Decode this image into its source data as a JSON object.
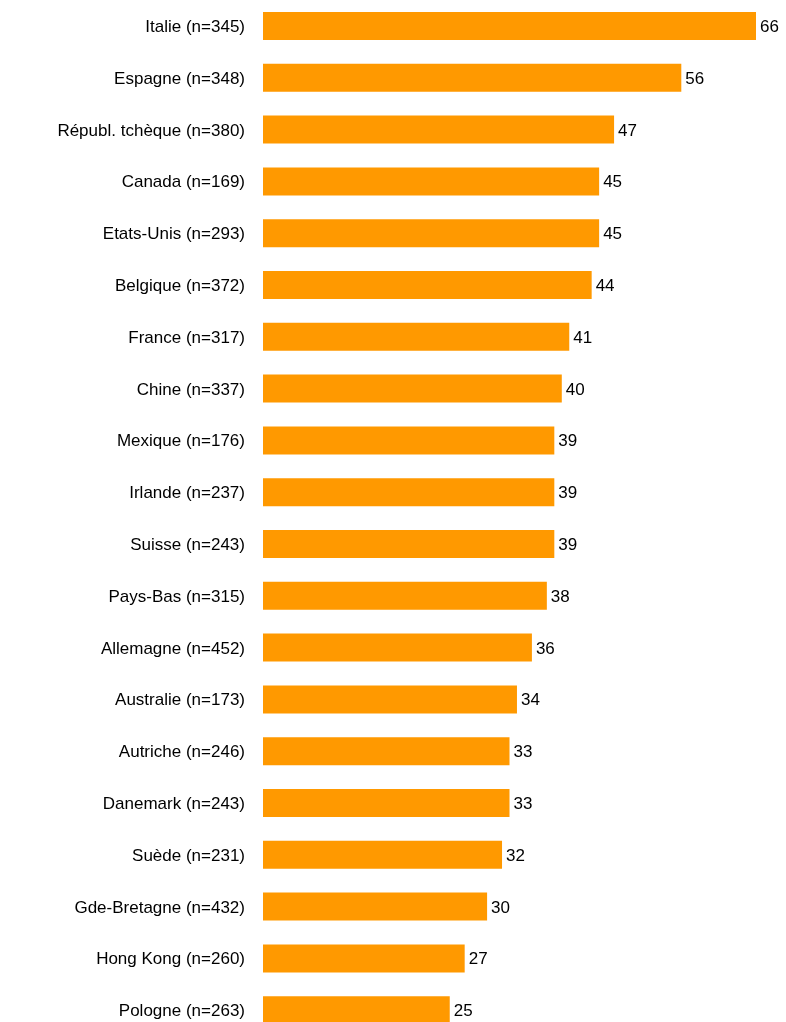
{
  "chart_data": {
    "type": "bar",
    "orientation": "horizontal",
    "categories": [
      "Italie (n=345)",
      "Espagne (n=348)",
      "Républ. tchèque (n=380)",
      "Canada (n=169)",
      "Etats-Unis (n=293)",
      "Belgique (n=372)",
      "France (n=317)",
      "Chine (n=337)",
      "Mexique (n=176)",
      "Irlande (n=237)",
      "Suisse (n=243)",
      "Pays-Bas (n=315)",
      "Allemagne (n=452)",
      "Australie (n=173)",
      "Autriche (n=246)",
      "Danemark (n=243)",
      "Suède (n=231)",
      "Gde-Bretagne (n=432)",
      "Hong Kong (n=260)",
      "Pologne (n=263)"
    ],
    "values": [
      66,
      56,
      47,
      45,
      45,
      44,
      41,
      40,
      39,
      39,
      39,
      38,
      36,
      34,
      33,
      33,
      32,
      30,
      27,
      25
    ],
    "color": "#ff9900",
    "data_labels": true,
    "grid": false,
    "legend": false,
    "tick_labels": "y"
  }
}
